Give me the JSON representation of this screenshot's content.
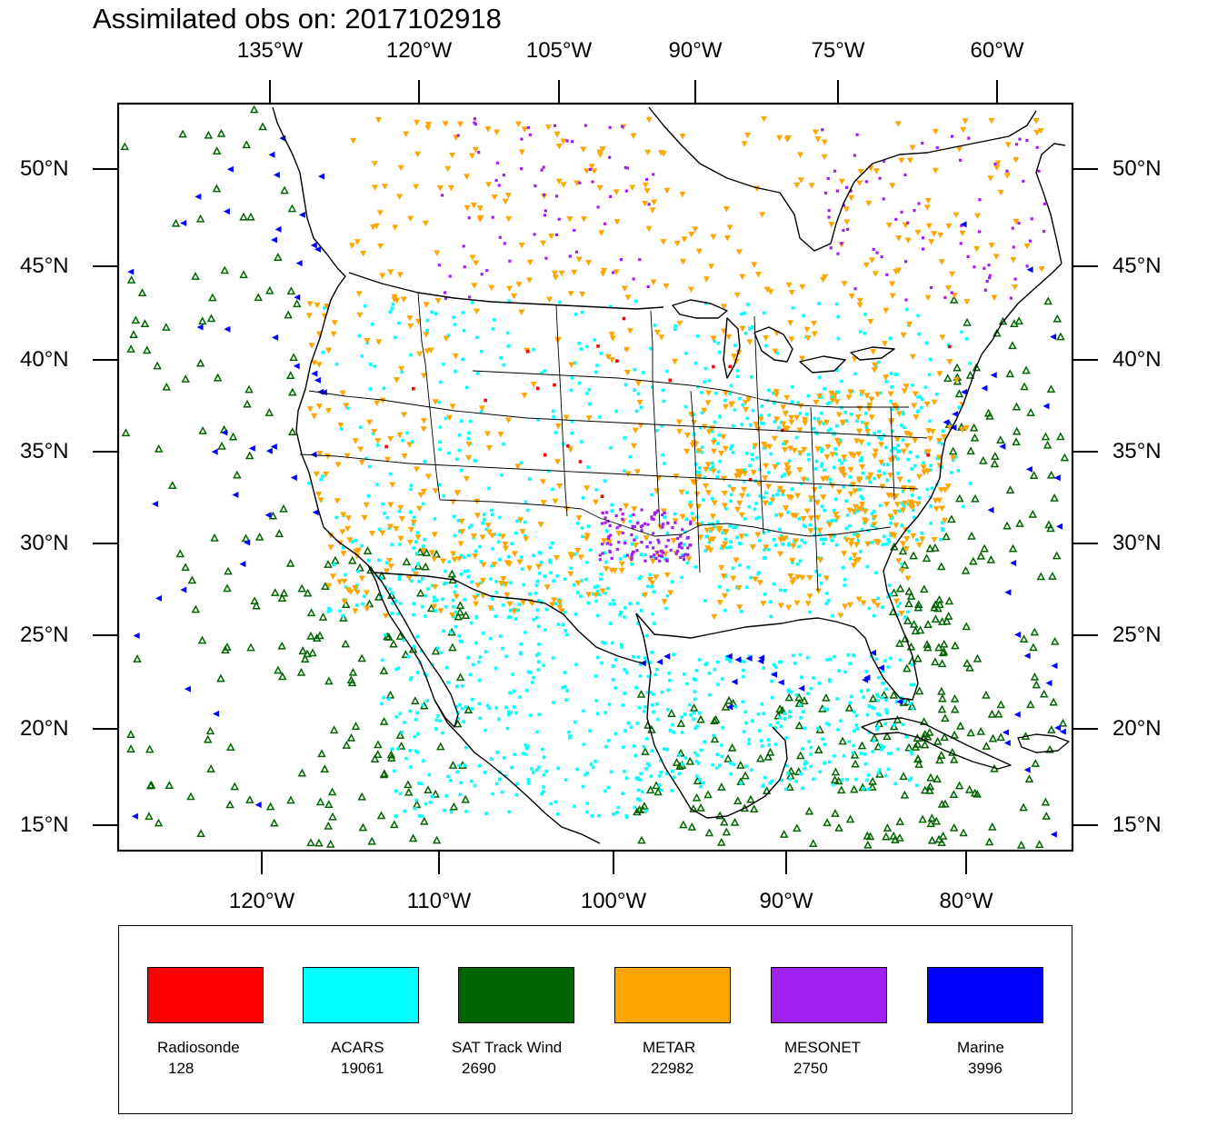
{
  "title": "Assimilated obs on: 2017102918",
  "axes": {
    "top_ticks": [
      "135°W",
      "120°W",
      "105°W",
      "90°W",
      "75°W",
      "60°W"
    ],
    "bottom_ticks": [
      "120°W",
      "110°W",
      "100°W",
      "90°W",
      "80°W"
    ],
    "left_ticks": [
      "50°N",
      "45°N",
      "40°N",
      "35°N",
      "30°N",
      "25°N",
      "20°N",
      "15°N"
    ],
    "right_ticks": [
      "50°N",
      "45°N",
      "40°N",
      "35°N",
      "30°N",
      "25°N",
      "20°N",
      "15°N"
    ]
  },
  "legend": [
    {
      "name": "Radiosonde",
      "count": "128",
      "color": "#ff0000"
    },
    {
      "name": "ACARS",
      "count": "19061",
      "color": "#00ffff"
    },
    {
      "name": "SAT Track Wind",
      "count": "2690",
      "color": "#006400"
    },
    {
      "name": "METAR",
      "count": "22982",
      "color": "#ffa500"
    },
    {
      "name": "MESONET",
      "count": "2750",
      "color": "#a020f0"
    },
    {
      "name": "Marine",
      "count": "3996",
      "color": "#0000ff"
    }
  ],
  "colors": {
    "radiosonde": "#ff0000",
    "acars": "#00ffff",
    "sat_track_wind": "#006400",
    "metar": "#ffa500",
    "mesonet": "#a020f0",
    "marine": "#0000ff"
  }
}
